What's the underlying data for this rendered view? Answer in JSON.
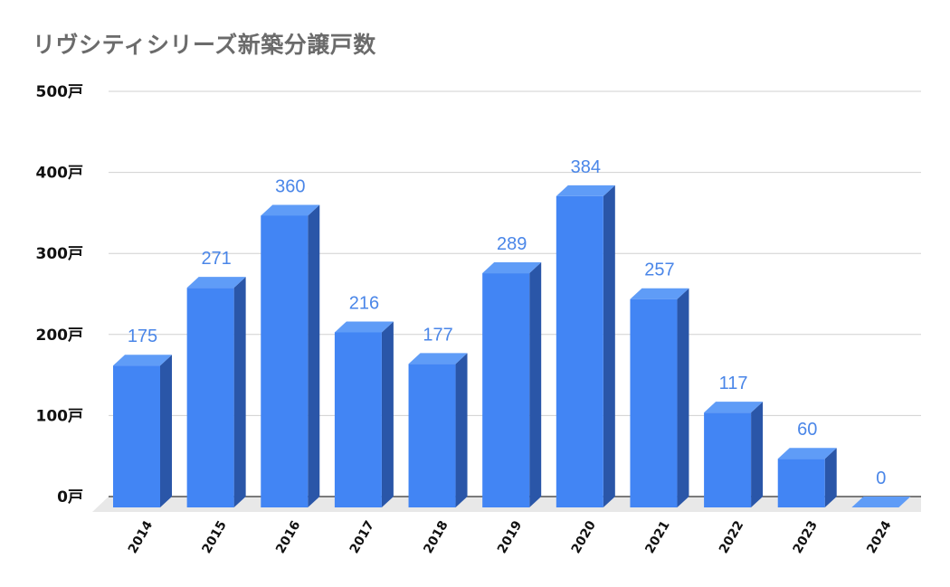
{
  "chart_data": {
    "type": "bar",
    "title": "リヴシティシリーズ新築分譲戸数",
    "categories": [
      "2014",
      "2015",
      "2016",
      "2017",
      "2018",
      "2019",
      "2020",
      "2021",
      "2022",
      "2023",
      "2024"
    ],
    "values": [
      175,
      271,
      360,
      216,
      177,
      289,
      384,
      257,
      117,
      60,
      0
    ],
    "ylim": [
      0,
      500
    ],
    "yticks": [
      0,
      100,
      200,
      300,
      400,
      500
    ],
    "ytick_labels": [
      "0戸",
      "100戸",
      "200戸",
      "300戸",
      "400戸",
      "500戸"
    ],
    "xlabel": "",
    "ylabel": "",
    "grid": true,
    "style": "3d",
    "colors": {
      "bar_front": "#4285f4",
      "bar_top": "#5f9cf7",
      "bar_side": "#2a56a8",
      "label": "#4a86e8",
      "grid": "#d0d0d0",
      "floor": "#e8e8e8"
    }
  }
}
